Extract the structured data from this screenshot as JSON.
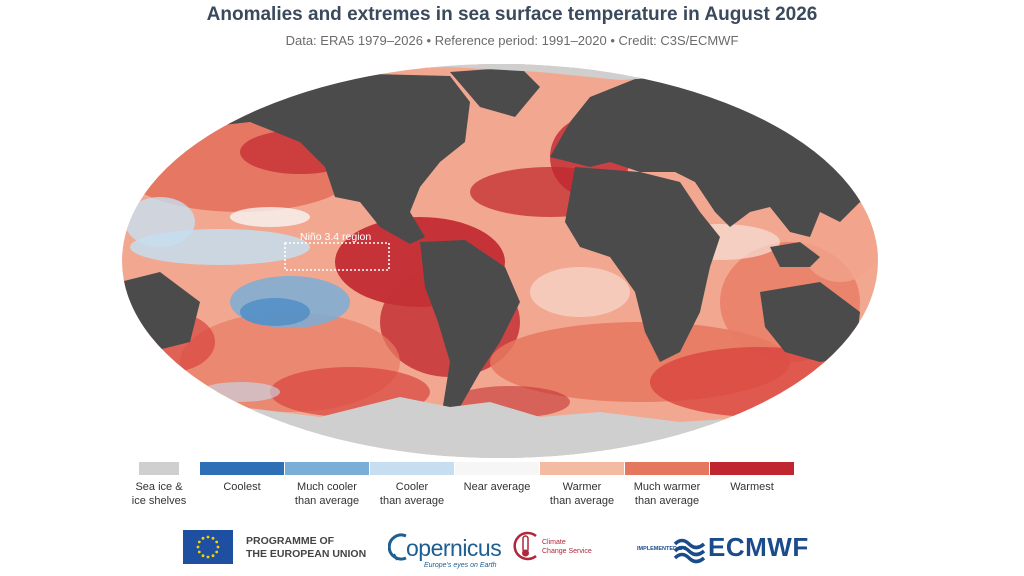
{
  "title": "Anomalies and extremes in sea surface temperature in August 2026",
  "subtitle": "Data: ERA5 1979–2026 • Reference period: 1991–2020 • Credit: C3S/ECMWF",
  "map": {
    "annotation_label": "Niño 3.4 region",
    "colors": {
      "land": "#4b4b4b",
      "sea_ice": "#cfcfcf",
      "warmest": "#c0262f",
      "much_warmer": "#e5775e",
      "warmer": "#f4bba3",
      "near_average": "#f7f4f2",
      "cooler": "#c6def0",
      "much_cooler": "#7aaed6",
      "coolest": "#2a6fb8"
    }
  },
  "legend": {
    "items": [
      {
        "label": "Sea ice &\nice shelves",
        "color": "#cfcfcf"
      },
      {
        "label": "Coolest",
        "color": "#2f6fb5"
      },
      {
        "label": "Much cooler\nthan average",
        "color": "#7aaed6"
      },
      {
        "label": "Cooler\nthan average",
        "color": "#c6def0"
      },
      {
        "label": "Near average",
        "color": "#f6f6f6"
      },
      {
        "label": "Warmer\nthan average",
        "color": "#f4bba3"
      },
      {
        "label": "Much warmer\nthan average",
        "color": "#e5775e"
      },
      {
        "label": "Warmest",
        "color": "#c0262f"
      }
    ]
  },
  "logos": {
    "eu_text": "PROGRAMME OF\nTHE EUROPEAN UNION",
    "copernicus_word": "opernicus",
    "copernicus_tagline": "Europe's eyes on Earth",
    "c3s_text": "Climate\nChange Service",
    "implemented_by": "IMPLEMENTED BY",
    "ecmwf_word": "ECMWF",
    "eu_flag_color": "#1f4fa0",
    "eu_star_color": "#f5d400"
  }
}
